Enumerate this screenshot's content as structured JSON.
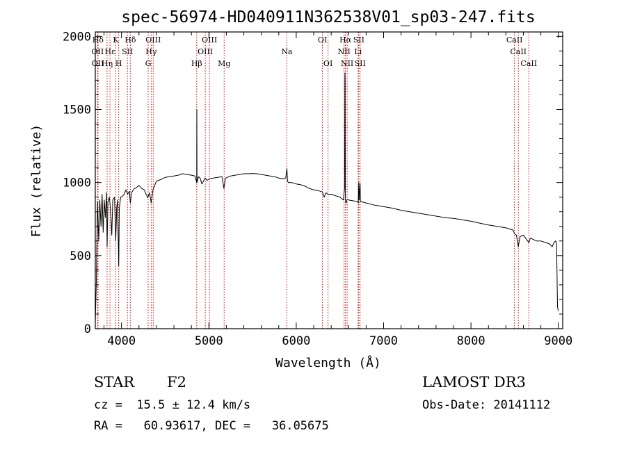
{
  "chart_data": {
    "type": "line",
    "title": "spec-56974-HD040911N362538V01_sp03-247.fits",
    "xlabel": "Wavelength (Å)",
    "ylabel": "Flux (relative)",
    "xlim": [
      3700,
      9050
    ],
    "ylim": [
      0,
      2030
    ],
    "xticks": [
      4000,
      5000,
      6000,
      7000,
      8000,
      9000
    ],
    "yticks": [
      0,
      500,
      1000,
      1500,
      2000
    ],
    "line_color": "#000000",
    "marker_color": "#cc0000",
    "series": [
      {
        "name": "spectrum",
        "points": [
          [
            3700,
            50
          ],
          [
            3712,
            320
          ],
          [
            3725,
            870
          ],
          [
            3740,
            600
          ],
          [
            3752,
            880
          ],
          [
            3765,
            700
          ],
          [
            3778,
            920
          ],
          [
            3790,
            660
          ],
          [
            3803,
            880
          ],
          [
            3815,
            760
          ],
          [
            3828,
            930
          ],
          [
            3835,
            560
          ],
          [
            3845,
            870
          ],
          [
            3860,
            900
          ],
          [
            3875,
            820
          ],
          [
            3889,
            640
          ],
          [
            3900,
            880
          ],
          [
            3920,
            900
          ],
          [
            3934,
            600
          ],
          [
            3945,
            830
          ],
          [
            3955,
            880
          ],
          [
            3968,
            430
          ],
          [
            3975,
            820
          ],
          [
            3990,
            900
          ],
          [
            4010,
            905
          ],
          [
            4030,
            920
          ],
          [
            4050,
            950
          ],
          [
            4070,
            920
          ],
          [
            4090,
            940
          ],
          [
            4101,
            860
          ],
          [
            4115,
            930
          ],
          [
            4140,
            955
          ],
          [
            4170,
            965
          ],
          [
            4200,
            980
          ],
          [
            4230,
            960
          ],
          [
            4260,
            950
          ],
          [
            4300,
            895
          ],
          [
            4320,
            930
          ],
          [
            4340,
            860
          ],
          [
            4360,
            950
          ],
          [
            4400,
            1010
          ],
          [
            4450,
            1020
          ],
          [
            4500,
            1035
          ],
          [
            4550,
            1040
          ],
          [
            4600,
            1045
          ],
          [
            4650,
            1050
          ],
          [
            4700,
            1060
          ],
          [
            4750,
            1055
          ],
          [
            4800,
            1050
          ],
          [
            4840,
            1045
          ],
          [
            4861,
            1000
          ],
          [
            4862,
            1500
          ],
          [
            4864,
            1000
          ],
          [
            4880,
            1040
          ],
          [
            4900,
            1030
          ],
          [
            4920,
            990
          ],
          [
            4957,
            1030
          ],
          [
            4980,
            1015
          ],
          [
            5007,
            1025
          ],
          [
            5050,
            1030
          ],
          [
            5100,
            1035
          ],
          [
            5150,
            1040
          ],
          [
            5172,
            960
          ],
          [
            5190,
            1030
          ],
          [
            5250,
            1045
          ],
          [
            5300,
            1050
          ],
          [
            5350,
            1055
          ],
          [
            5400,
            1060
          ],
          [
            5450,
            1060
          ],
          [
            5500,
            1062
          ],
          [
            5550,
            1060
          ],
          [
            5600,
            1055
          ],
          [
            5650,
            1050
          ],
          [
            5700,
            1045
          ],
          [
            5750,
            1040
          ],
          [
            5800,
            1030
          ],
          [
            5850,
            1025
          ],
          [
            5880,
            1030
          ],
          [
            5893,
            1095
          ],
          [
            5900,
            1010
          ],
          [
            5910,
            1000
          ],
          [
            5950,
            1000
          ],
          [
            6000,
            990
          ],
          [
            6050,
            985
          ],
          [
            6100,
            975
          ],
          [
            6150,
            960
          ],
          [
            6200,
            950
          ],
          [
            6250,
            945
          ],
          [
            6300,
            935
          ],
          [
            6320,
            900
          ],
          [
            6340,
            930
          ],
          [
            6364,
            920
          ],
          [
            6400,
            920
          ],
          [
            6450,
            910
          ],
          [
            6500,
            900
          ],
          [
            6540,
            880
          ],
          [
            6553,
            960
          ],
          [
            6557,
            1750
          ],
          [
            6560,
            1700
          ],
          [
            6563,
            880
          ],
          [
            6570,
            860
          ],
          [
            6583,
            885
          ],
          [
            6600,
            880
          ],
          [
            6650,
            875
          ],
          [
            6700,
            870
          ],
          [
            6710,
            860
          ],
          [
            6716,
            1000
          ],
          [
            6720,
            880
          ],
          [
            6731,
            995
          ],
          [
            6735,
            870
          ],
          [
            6800,
            860
          ],
          [
            6900,
            845
          ],
          [
            7000,
            835
          ],
          [
            7100,
            825
          ],
          [
            7200,
            810
          ],
          [
            7300,
            800
          ],
          [
            7400,
            790
          ],
          [
            7500,
            780
          ],
          [
            7600,
            770
          ],
          [
            7700,
            760
          ],
          [
            7800,
            755
          ],
          [
            7900,
            745
          ],
          [
            8000,
            735
          ],
          [
            8100,
            722
          ],
          [
            8200,
            710
          ],
          [
            8300,
            700
          ],
          [
            8400,
            690
          ],
          [
            8480,
            675
          ],
          [
            8500,
            650
          ],
          [
            8520,
            640
          ],
          [
            8542,
            560
          ],
          [
            8560,
            630
          ],
          [
            8600,
            640
          ],
          [
            8662,
            590
          ],
          [
            8680,
            620
          ],
          [
            8750,
            600
          ],
          [
            8800,
            600
          ],
          [
            8850,
            590
          ],
          [
            8900,
            580
          ],
          [
            8930,
            560
          ],
          [
            8950,
            590
          ],
          [
            8970,
            600
          ],
          [
            8980,
            580
          ],
          [
            8990,
            150
          ],
          [
            9000,
            120
          ]
        ]
      }
    ],
    "line_markers": [
      {
        "label": "Hδ",
        "lambda": 3731,
        "row": 0
      },
      {
        "label": "OII",
        "lambda": 3727,
        "row": 1
      },
      {
        "label": "OII",
        "lambda": 3729,
        "row": 2
      },
      {
        "label": "K",
        "lambda": 3934,
        "row": 0
      },
      {
        "label": "Hε",
        "lambda": 3868,
        "row": 1
      },
      {
        "label": "Hη",
        "lambda": 3835,
        "row": 2
      },
      {
        "label": "H",
        "lambda": 3968,
        "row": 2
      },
      {
        "label": "Hδ",
        "lambda": 4101,
        "row": 0
      },
      {
        "label": "SII",
        "lambda": 4068,
        "row": 1
      },
      {
        "label": "OIII",
        "lambda": 4363,
        "row": 0
      },
      {
        "label": "Hγ",
        "lambda": 4340,
        "row": 1
      },
      {
        "label": "G",
        "lambda": 4305,
        "row": 2
      },
      {
        "label": "Hβ",
        "lambda": 4861,
        "row": 2
      },
      {
        "label": "OIII",
        "lambda": 5007,
        "row": 0
      },
      {
        "label": "OIII",
        "lambda": 4959,
        "row": 1
      },
      {
        "label": "Mg",
        "lambda": 5175,
        "row": 2
      },
      {
        "label": "Na",
        "lambda": 5893,
        "row": 1
      },
      {
        "label": "OI",
        "lambda": 6300,
        "row": 0
      },
      {
        "label": "OI",
        "lambda": 6364,
        "row": 2
      },
      {
        "label": "Hα",
        "lambda": 6563,
        "row": 0
      },
      {
        "label": "SII",
        "lambda": 6716,
        "row": 0
      },
      {
        "label": "NII",
        "lambda": 6548,
        "row": 1
      },
      {
        "label": "Li",
        "lambda": 6708,
        "row": 1
      },
      {
        "label": "NII",
        "lambda": 6583,
        "row": 2
      },
      {
        "label": "SII",
        "lambda": 6731,
        "row": 2
      },
      {
        "label": "CaII",
        "lambda": 8498,
        "row": 0
      },
      {
        "label": "CaII",
        "lambda": 8542,
        "row": 1
      },
      {
        "label": "CaII",
        "lambda": 8662,
        "row": 2
      }
    ]
  },
  "info": {
    "object_class": "STAR",
    "subclass": "F2",
    "survey": "LAMOST DR3",
    "redshift": "cz =  15.5 ± 12.4 km/s",
    "obs_date": "Obs-Date: 20141112",
    "coords": "RA =   60.93617, DEC =   36.05675"
  }
}
